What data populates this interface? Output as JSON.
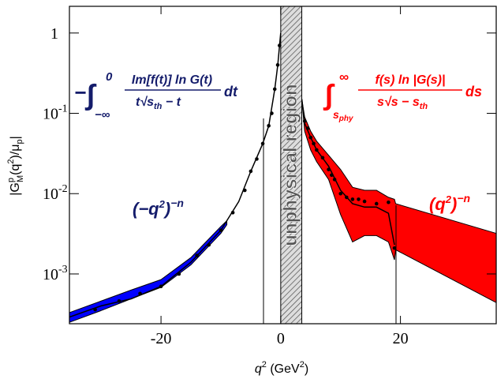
{
  "chart_data": {
    "type": "line",
    "log_y": true,
    "xlim": [
      -35.3,
      36
    ],
    "ylim": [
      0.00024,
      2.15
    ],
    "xticks": [
      -20,
      0,
      20
    ],
    "yticks": [
      {
        "value": 0.001,
        "label": "10",
        "exponent": "-3"
      },
      {
        "value": 0.01,
        "label": "10",
        "exponent": "-2"
      },
      {
        "value": 0.1,
        "label": "10",
        "exponent": "-1"
      },
      1
    ],
    "xlabel": [
      "q",
      "2",
      " (GeV",
      "2",
      ")"
    ],
    "ylabel": [
      "|G",
      "p",
      "M",
      "(q",
      "2",
      ")/μ",
      "p",
      "|"
    ],
    "shade_x": [
      0,
      3.52
    ],
    "shade_label": "unphysical region",
    "bands": [
      {
        "color": "#0000ff",
        "x": [
          -35.3,
          -30,
          -25,
          -20,
          -15,
          -10,
          -9
        ],
        "upper": [
          0.00033,
          0.00046,
          0.00063,
          0.00085,
          0.0016,
          0.0039,
          0.0046
        ],
        "lower": [
          0.00025,
          0.00035,
          0.00049,
          0.00068,
          0.0013,
          0.0032,
          0.0041
        ]
      },
      {
        "color": "#ff0000",
        "x": [
          3.52,
          4,
          5,
          6,
          8,
          10,
          12,
          14,
          16,
          18,
          19,
          19.2,
          36
        ],
        "upper": [
          0.15,
          0.09,
          0.06,
          0.045,
          0.03,
          0.02,
          0.012,
          0.011,
          0.011,
          0.009,
          0.0085,
          0.0075,
          0.0032
        ],
        "lower": [
          0.15,
          0.06,
          0.035,
          0.025,
          0.015,
          0.0055,
          0.0025,
          0.003,
          0.003,
          0.0025,
          0.0015,
          0.002,
          0.00044
        ]
      }
    ],
    "series": [
      {
        "color": "#000000",
        "x": [
          -35.3,
          -30,
          -25,
          -20,
          -15,
          -10,
          -7,
          -5,
          -3,
          -2,
          -1,
          -0.5,
          0,
          null,
          3.52,
          4,
          5,
          6,
          8,
          10,
          12,
          14,
          16,
          18,
          19
        ],
        "values": [
          0.00029,
          0.0004,
          0.00049,
          0.0007,
          0.0014,
          0.0035,
          0.008,
          0.019,
          0.042,
          0.07,
          0.2,
          0.4,
          1,
          null,
          0.15,
          0.075,
          0.05,
          0.035,
          0.022,
          0.011,
          0.0075,
          0.0068,
          0.0068,
          0.0057,
          0.0023
        ]
      },
      {
        "color": "#000000",
        "marker": "dot",
        "x": [
          -31,
          -27,
          -23.5,
          -20,
          -17,
          -14,
          -12,
          -10,
          -8,
          -6,
          -5,
          -4,
          -3,
          -2,
          -1.5,
          -1,
          -0.5,
          -0.2,
          4,
          4.5,
          5,
          5.5,
          6,
          7,
          8,
          8.5,
          9,
          10,
          11,
          12,
          13,
          14,
          16,
          18,
          19
        ],
        "values": [
          0.00036,
          0.00046,
          0.00057,
          0.0007,
          0.001,
          0.0017,
          0.0023,
          0.0035,
          0.0058,
          0.011,
          0.019,
          0.027,
          0.042,
          0.07,
          0.1,
          0.2,
          0.4,
          0.7,
          0.08,
          0.065,
          0.05,
          0.042,
          0.035,
          0.028,
          0.02,
          0.017,
          0.015,
          0.01,
          0.009,
          0.0085,
          0.0085,
          0.008,
          0.0075,
          0.0078,
          0.0021
        ]
      }
    ],
    "annotations": {
      "left_formula": {
        "minus": "−",
        "integral": "∫",
        "upper": "0",
        "lower": "−∞",
        "numerator": "Im[f(t)] ln G(t)",
        "denominator": [
          "t√",
          "s",
          "th",
          " − t"
        ],
        "differential": "dt"
      },
      "right_formula": {
        "integral": "∫",
        "upper": "∞",
        "lower": [
          "s",
          "phy"
        ],
        "numerator": "f(s) ln |G(s)|",
        "denominator": [
          "s√",
          "s − s",
          "th"
        ],
        "differential": "ds"
      },
      "left_power": [
        "(−q",
        "2",
        ")",
        "−n"
      ],
      "right_power": [
        "(q",
        "2",
        ")",
        "−n"
      ]
    }
  }
}
